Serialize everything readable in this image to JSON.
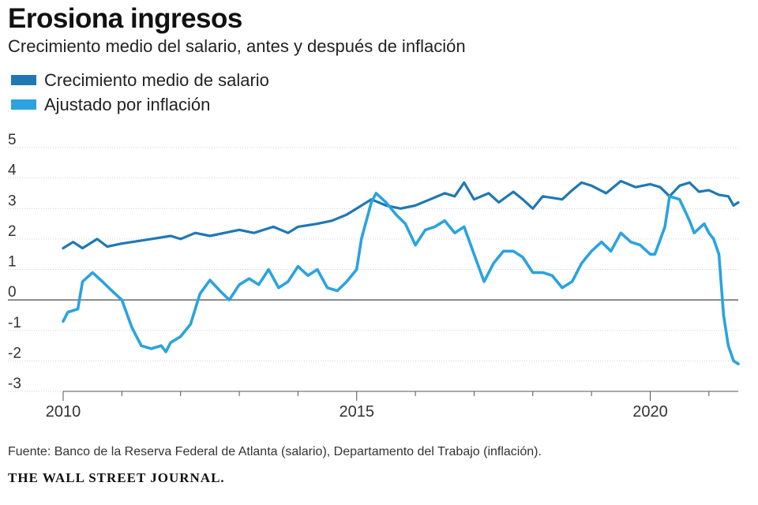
{
  "header": {
    "title": "Erosiona ingresos",
    "subtitle": "Crecimiento medio del salario, antes y después de inflación"
  },
  "legend": [
    {
      "label": "Crecimiento medio de salario",
      "color": "#1f78b4"
    },
    {
      "label": "Ajustado por inflación",
      "color": "#2aa3e0"
    }
  ],
  "footer": {
    "source": "Fuente: Banco de la Reserva Federal de Atlanta (salario), Departamento del Trabajo (inflación).",
    "brand": "THE WALL STREET JOURNAL."
  },
  "chart_data": {
    "type": "line",
    "title": "Erosiona ingresos",
    "subtitle": "Crecimiento medio del salario, antes y después de inflación",
    "ylim": [
      -3,
      5
    ],
    "yticks": [
      5,
      4,
      3,
      2,
      1,
      0,
      -1,
      -2,
      -3
    ],
    "xlim": [
      2010,
      2021.5
    ],
    "xticks": [
      2010,
      2015,
      2020
    ],
    "grid": true,
    "legend_position": "top-left",
    "series": [
      {
        "name": "Crecimiento medio de salario",
        "color": "#1f78b4",
        "points": [
          [
            2010.0,
            1.7
          ],
          [
            2010.17,
            1.9
          ],
          [
            2010.33,
            1.7
          ],
          [
            2010.58,
            2.0
          ],
          [
            2010.75,
            1.75
          ],
          [
            2011.0,
            1.85
          ],
          [
            2011.5,
            2.0
          ],
          [
            2011.83,
            2.1
          ],
          [
            2012.0,
            2.0
          ],
          [
            2012.25,
            2.2
          ],
          [
            2012.5,
            2.1
          ],
          [
            2013.0,
            2.3
          ],
          [
            2013.25,
            2.2
          ],
          [
            2013.58,
            2.4
          ],
          [
            2013.83,
            2.2
          ],
          [
            2014.0,
            2.4
          ],
          [
            2014.33,
            2.5
          ],
          [
            2014.58,
            2.6
          ],
          [
            2014.83,
            2.8
          ],
          [
            2015.0,
            3.0
          ],
          [
            2015.25,
            3.3
          ],
          [
            2015.5,
            3.1
          ],
          [
            2015.75,
            3.0
          ],
          [
            2016.0,
            3.1
          ],
          [
            2016.25,
            3.3
          ],
          [
            2016.5,
            3.5
          ],
          [
            2016.67,
            3.4
          ],
          [
            2016.83,
            3.85
          ],
          [
            2017.0,
            3.3
          ],
          [
            2017.25,
            3.5
          ],
          [
            2017.42,
            3.2
          ],
          [
            2017.67,
            3.55
          ],
          [
            2017.83,
            3.3
          ],
          [
            2018.0,
            3.0
          ],
          [
            2018.17,
            3.4
          ],
          [
            2018.5,
            3.3
          ],
          [
            2018.67,
            3.6
          ],
          [
            2018.83,
            3.85
          ],
          [
            2019.0,
            3.75
          ],
          [
            2019.25,
            3.5
          ],
          [
            2019.5,
            3.9
          ],
          [
            2019.75,
            3.7
          ],
          [
            2020.0,
            3.8
          ],
          [
            2020.17,
            3.7
          ],
          [
            2020.33,
            3.4
          ],
          [
            2020.5,
            3.75
          ],
          [
            2020.67,
            3.85
          ],
          [
            2020.83,
            3.55
          ],
          [
            2021.0,
            3.6
          ],
          [
            2021.17,
            3.45
          ],
          [
            2021.33,
            3.4
          ],
          [
            2021.42,
            3.1
          ],
          [
            2021.5,
            3.2
          ]
        ]
      },
      {
        "name": "Ajustado por inflación",
        "color": "#2aa3e0",
        "points": [
          [
            2010.0,
            -0.7
          ],
          [
            2010.08,
            -0.4
          ],
          [
            2010.25,
            -0.3
          ],
          [
            2010.33,
            0.6
          ],
          [
            2010.5,
            0.9
          ],
          [
            2010.67,
            0.6
          ],
          [
            2010.83,
            0.3
          ],
          [
            2011.0,
            0.0
          ],
          [
            2011.17,
            -0.9
          ],
          [
            2011.33,
            -1.5
          ],
          [
            2011.5,
            -1.6
          ],
          [
            2011.67,
            -1.5
          ],
          [
            2011.75,
            -1.7
          ],
          [
            2011.83,
            -1.4
          ],
          [
            2012.0,
            -1.2
          ],
          [
            2012.17,
            -0.8
          ],
          [
            2012.33,
            0.2
          ],
          [
            2012.5,
            0.65
          ],
          [
            2012.67,
            0.3
          ],
          [
            2012.83,
            0.0
          ],
          [
            2013.0,
            0.5
          ],
          [
            2013.17,
            0.7
          ],
          [
            2013.33,
            0.5
          ],
          [
            2013.5,
            1.0
          ],
          [
            2013.67,
            0.4
          ],
          [
            2013.83,
            0.6
          ],
          [
            2014.0,
            1.1
          ],
          [
            2014.17,
            0.8
          ],
          [
            2014.33,
            1.0
          ],
          [
            2014.5,
            0.4
          ],
          [
            2014.67,
            0.3
          ],
          [
            2014.83,
            0.6
          ],
          [
            2015.0,
            1.0
          ],
          [
            2015.08,
            2.0
          ],
          [
            2015.25,
            3.2
          ],
          [
            2015.33,
            3.5
          ],
          [
            2015.5,
            3.2
          ],
          [
            2015.67,
            2.8
          ],
          [
            2015.83,
            2.5
          ],
          [
            2016.0,
            1.8
          ],
          [
            2016.17,
            2.3
          ],
          [
            2016.33,
            2.4
          ],
          [
            2016.5,
            2.6
          ],
          [
            2016.67,
            2.2
          ],
          [
            2016.83,
            2.4
          ],
          [
            2017.0,
            1.5
          ],
          [
            2017.17,
            0.6
          ],
          [
            2017.33,
            1.2
          ],
          [
            2017.5,
            1.6
          ],
          [
            2017.67,
            1.6
          ],
          [
            2017.83,
            1.4
          ],
          [
            2018.0,
            0.9
          ],
          [
            2018.17,
            0.9
          ],
          [
            2018.33,
            0.8
          ],
          [
            2018.5,
            0.4
          ],
          [
            2018.67,
            0.6
          ],
          [
            2018.83,
            1.2
          ],
          [
            2019.0,
            1.6
          ],
          [
            2019.17,
            1.9
          ],
          [
            2019.33,
            1.6
          ],
          [
            2019.5,
            2.2
          ],
          [
            2019.67,
            1.9
          ],
          [
            2019.83,
            1.8
          ],
          [
            2020.0,
            1.5
          ],
          [
            2020.08,
            1.5
          ],
          [
            2020.25,
            2.4
          ],
          [
            2020.33,
            3.4
          ],
          [
            2020.5,
            3.3
          ],
          [
            2020.67,
            2.6
          ],
          [
            2020.75,
            2.2
          ],
          [
            2020.92,
            2.5
          ],
          [
            2021.0,
            2.2
          ],
          [
            2021.08,
            2.0
          ],
          [
            2021.17,
            1.5
          ],
          [
            2021.25,
            -0.5
          ],
          [
            2021.33,
            -1.5
          ],
          [
            2021.42,
            -2.0
          ],
          [
            2021.5,
            -2.1
          ]
        ]
      }
    ]
  }
}
